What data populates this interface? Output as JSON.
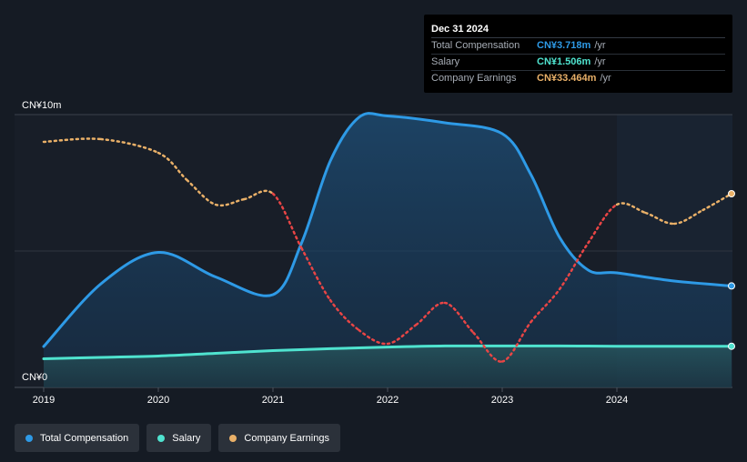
{
  "tooltip": {
    "date": "Dec 31 2024",
    "rows": [
      {
        "label": "Total Compensation",
        "value": "CN¥3.718m",
        "unit": "/yr",
        "color": "#2e9ae6"
      },
      {
        "label": "Salary",
        "value": "CN¥1.506m",
        "unit": "/yr",
        "color": "#4fe3cf"
      },
      {
        "label": "Company Earnings",
        "value": "CN¥33.464m",
        "unit": "/yr",
        "color": "#e9b068"
      }
    ]
  },
  "legend": [
    {
      "label": "Total Compensation",
      "color": "#2e9ae6"
    },
    {
      "label": "Salary",
      "color": "#4fe3cf"
    },
    {
      "label": "Company Earnings",
      "color": "#e9b068"
    }
  ],
  "chart_data": {
    "type": "line",
    "y_tick_labels": {
      "top": "CN¥10m",
      "bottom": "CN¥0"
    },
    "x_tick_labels": [
      "2019",
      "2020",
      "2021",
      "2022",
      "2023",
      "2024"
    ],
    "ylim": [
      0,
      10
    ],
    "xlim": [
      2019.0,
      2025.0
    ],
    "forecast_region_start": 2024.0,
    "series": [
      {
        "name": "Total Compensation",
        "style": "solid-area",
        "color": "#2e9ae6",
        "points": [
          [
            2019.0,
            1.5
          ],
          [
            2019.5,
            3.8
          ],
          [
            2020.0,
            4.95
          ],
          [
            2020.5,
            4.05
          ],
          [
            2021.0,
            3.4
          ],
          [
            2021.25,
            5.3
          ],
          [
            2021.5,
            8.3
          ],
          [
            2021.75,
            9.9
          ],
          [
            2022.0,
            9.95
          ],
          [
            2022.5,
            9.7
          ],
          [
            2023.0,
            9.3
          ],
          [
            2023.25,
            7.8
          ],
          [
            2023.5,
            5.5
          ],
          [
            2023.75,
            4.3
          ],
          [
            2024.0,
            4.2
          ],
          [
            2024.5,
            3.9
          ],
          [
            2025.0,
            3.72
          ]
        ]
      },
      {
        "name": "Salary",
        "style": "solid-area",
        "color": "#4fe3cf",
        "points": [
          [
            2019.0,
            1.05
          ],
          [
            2019.5,
            1.1
          ],
          [
            2020.0,
            1.15
          ],
          [
            2020.5,
            1.25
          ],
          [
            2021.0,
            1.35
          ],
          [
            2021.5,
            1.42
          ],
          [
            2022.0,
            1.48
          ],
          [
            2022.5,
            1.52
          ],
          [
            2023.0,
            1.52
          ],
          [
            2023.5,
            1.52
          ],
          [
            2024.0,
            1.51
          ],
          [
            2024.5,
            1.51
          ],
          [
            2025.0,
            1.51
          ]
        ]
      },
      {
        "name": "Company Earnings",
        "style": "dotted",
        "color": "#e9b068",
        "negative_color": "#e84545",
        "points": [
          [
            2019.0,
            9.0
          ],
          [
            2019.5,
            9.1
          ],
          [
            2020.0,
            8.6
          ],
          [
            2020.25,
            7.6
          ],
          [
            2020.5,
            6.7
          ],
          [
            2020.75,
            6.9
          ],
          [
            2021.0,
            7.1
          ],
          [
            2021.25,
            5.1
          ],
          [
            2021.5,
            3.2
          ],
          [
            2021.75,
            2.1
          ],
          [
            2022.0,
            1.6
          ],
          [
            2022.25,
            2.3
          ],
          [
            2022.5,
            3.1
          ],
          [
            2022.75,
            2.0
          ],
          [
            2023.0,
            0.95
          ],
          [
            2023.25,
            2.4
          ],
          [
            2023.5,
            3.6
          ],
          [
            2023.75,
            5.3
          ],
          [
            2024.0,
            6.7
          ],
          [
            2024.25,
            6.4
          ],
          [
            2024.5,
            6.0
          ],
          [
            2024.75,
            6.5
          ],
          [
            2025.0,
            7.1
          ]
        ]
      }
    ]
  }
}
